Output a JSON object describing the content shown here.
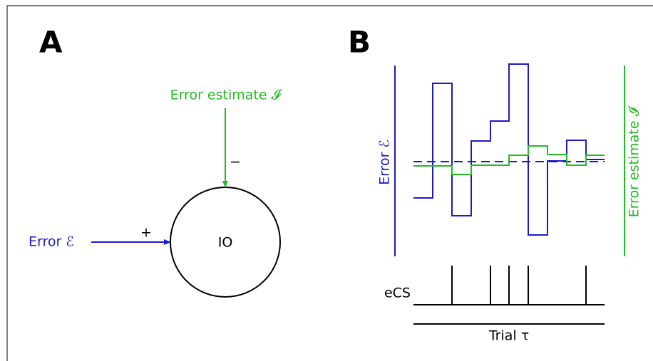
{
  "panel_a": {
    "label": "A",
    "node_label": "IO",
    "inhibitory_input": "Error estimate 𝓘",
    "inhibitory_sign": "−",
    "excitatory_input": "Error ℰ",
    "excitatory_sign": "+"
  },
  "panel_b": {
    "label": "B",
    "left_axis_label": "Error ℰ",
    "right_axis_label": "Error estimate 𝓘",
    "spike_label": "eCS",
    "x_axis_label": "Trial τ"
  }
}
